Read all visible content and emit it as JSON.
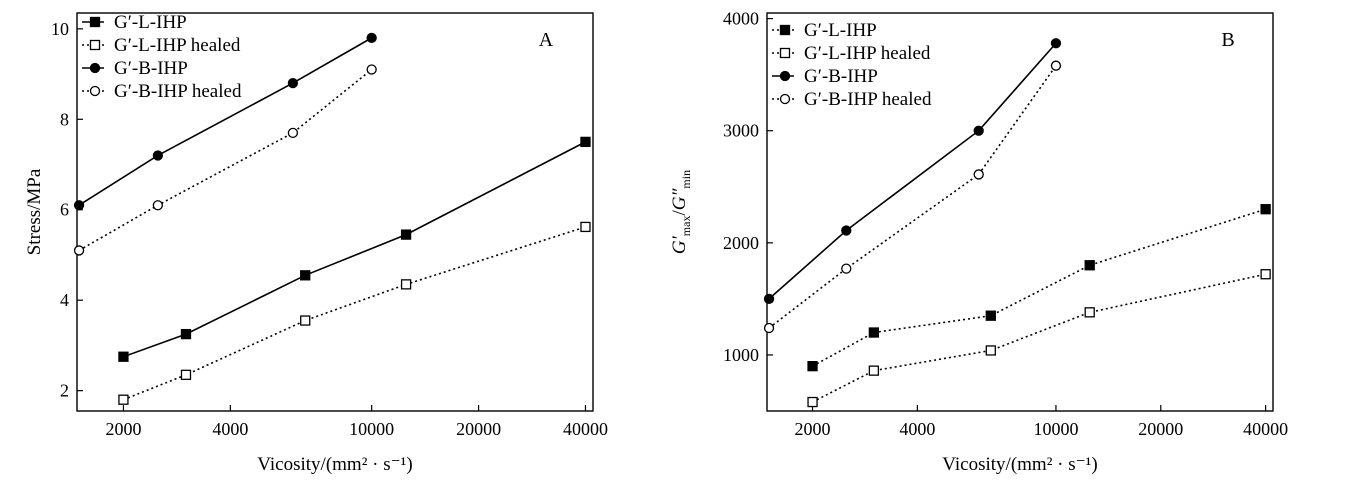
{
  "chart_data": [
    {
      "type": "line",
      "panel_label": "A",
      "xlabel": "Vicosity/(mm² · s⁻¹)",
      "ylabel": "Stress/MPa",
      "x_scale": "log",
      "xlim": [
        1480,
        42000
      ],
      "ylim": [
        1.55,
        10.35
      ],
      "x_ticks": [
        2000,
        4000,
        10000,
        20000,
        40000
      ],
      "x_tick_labels": [
        "2000",
        "4000",
        "10000",
        "20000",
        "40000"
      ],
      "y_ticks": [
        2,
        4,
        6,
        8,
        10
      ],
      "y_tick_labels": [
        "2",
        "4",
        "6",
        "8",
        "10"
      ],
      "grid": false,
      "legend_position": "top-left",
      "series": [
        {
          "name": "G′-L-IHP",
          "marker": "square-filled",
          "line": "solid",
          "x": [
            2000,
            3000,
            6500,
            12500,
            40000
          ],
          "y": [
            2.75,
            3.25,
            4.55,
            5.45,
            7.5
          ]
        },
        {
          "name": "G′-L-IHP healed",
          "marker": "square-open",
          "line": "dotted",
          "x": [
            2000,
            3000,
            6500,
            12500,
            40000
          ],
          "y": [
            1.8,
            2.35,
            3.55,
            4.35,
            5.62
          ]
        },
        {
          "name": "G′-B-IHP",
          "marker": "circle-filled",
          "line": "solid",
          "x": [
            1500,
            2500,
            6000,
            10000
          ],
          "y": [
            6.1,
            7.2,
            8.8,
            9.8
          ]
        },
        {
          "name": "G′-B-IHP healed",
          "marker": "circle-open",
          "line": "dotted",
          "x": [
            1500,
            2500,
            6000,
            10000
          ],
          "y": [
            5.1,
            6.1,
            7.7,
            9.1
          ]
        }
      ]
    },
    {
      "type": "line",
      "panel_label": "B",
      "xlabel": "Vicosity/(mm² · s⁻¹)",
      "ylabel_main": "G′",
      "ylabel_main_sub": "max",
      "ylabel_slash": "/",
      "ylabel_den": "G″",
      "ylabel_den_sub": "min",
      "x_scale": "log",
      "xlim": [
        1480,
        42000
      ],
      "ylim": [
        500,
        4050
      ],
      "x_ticks": [
        2000,
        4000,
        10000,
        20000,
        40000
      ],
      "x_tick_labels": [
        "2000",
        "4000",
        "10000",
        "20000",
        "40000"
      ],
      "y_ticks": [
        1000,
        2000,
        3000,
        4000
      ],
      "y_tick_labels": [
        "1000",
        "2000",
        "3000",
        "4000"
      ],
      "grid": false,
      "legend_position": "top-left",
      "series": [
        {
          "name": "G′-L-IHP",
          "marker": "square-filled",
          "line": "dotted",
          "x": [
            2000,
            3000,
            6500,
            12500,
            40000
          ],
          "y": [
            900,
            1200,
            1350,
            1800,
            2300
          ]
        },
        {
          "name": "G′-L-IHP healed",
          "marker": "square-open",
          "line": "dotted",
          "x": [
            2000,
            3000,
            6500,
            12500,
            40000
          ],
          "y": [
            580,
            860,
            1040,
            1380,
            1720
          ]
        },
        {
          "name": "G′-B-IHP",
          "marker": "circle-filled",
          "line": "solid",
          "x": [
            1500,
            2500,
            6000,
            10000
          ],
          "y": [
            1500,
            2110,
            3000,
            3780
          ]
        },
        {
          "name": "G′-B-IHP healed",
          "marker": "circle-open",
          "line": "dotted",
          "x": [
            1500,
            2500,
            6000,
            10000
          ],
          "y": [
            1240,
            1770,
            2610,
            3580
          ]
        }
      ]
    }
  ]
}
